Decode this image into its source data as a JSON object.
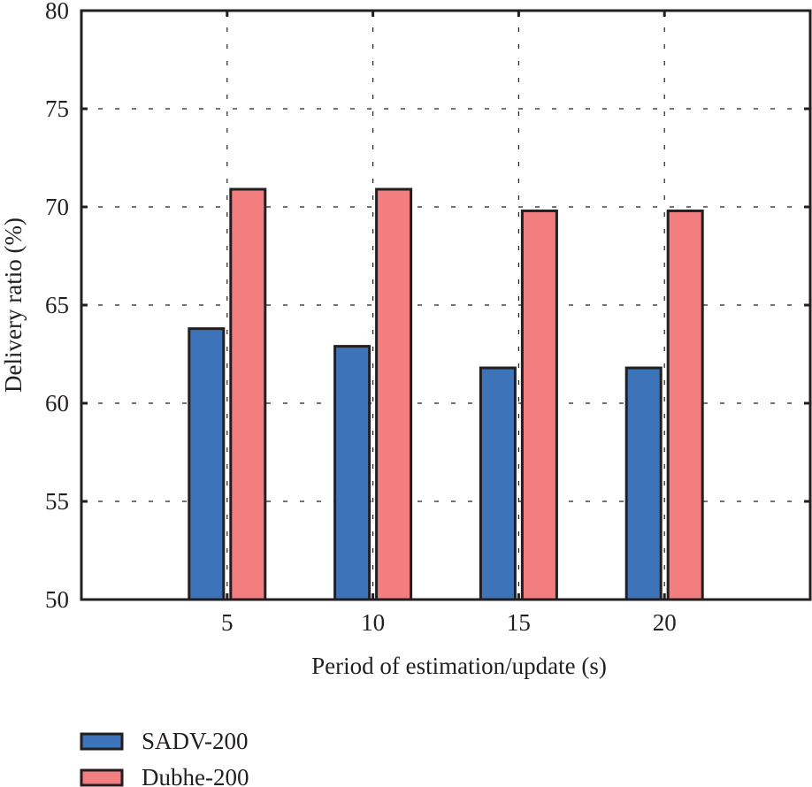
{
  "chart_data": {
    "type": "bar",
    "title": "",
    "xlabel": "Period of estimation/update (s)",
    "ylabel": "Delivery ratio (%)",
    "categories": [
      "5",
      "10",
      "15",
      "20"
    ],
    "x": [
      5,
      10,
      15,
      20
    ],
    "xlim": [
      0,
      25
    ],
    "ylim": [
      50,
      80
    ],
    "yticks": [
      50,
      55,
      60,
      65,
      70,
      75,
      80
    ],
    "xticks": [
      5,
      10,
      15,
      20
    ],
    "grid": true,
    "legend_position": "bottom-left, below plot",
    "series": [
      {
        "name": "SADV-200",
        "color": "#3d74b9",
        "values": [
          63.8,
          62.9,
          61.8,
          61.8
        ]
      },
      {
        "name": "Dubhe-200",
        "color": "#f37e80",
        "values": [
          70.9,
          70.9,
          69.8,
          69.8
        ]
      }
    ],
    "outline_color": "#231f20"
  }
}
